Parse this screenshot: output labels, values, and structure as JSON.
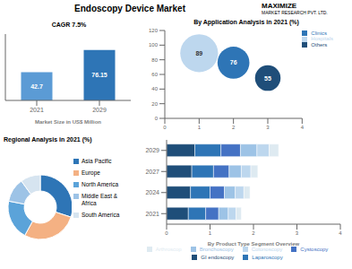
{
  "title": "Endoscopy Device Market",
  "annotations": [
    "MAXIMIZE",
    "MARKET RESEARCH PVT. LTD."
  ],
  "chart_data": [
    {
      "type": "bar",
      "categories": [
        "2021",
        "2029"
      ],
      "values": [
        42.7,
        76.15
      ],
      "colors": [
        "#5b9bd5",
        "#2e75b6"
      ],
      "x_label": "Market Size in US$ Million",
      "ylim": [
        0,
        100
      ],
      "tick_labels": "x",
      "data_labels": true,
      "grid": false,
      "annotations": [
        "CAGR 7.5%"
      ]
    },
    {
      "type": "scatter",
      "title": "By Application Analysis in 2021 (%)",
      "series": [
        {
          "name": "Hospitals",
          "color": "#bdd7ee",
          "x": [
            1
          ],
          "values": [
            89
          ],
          "sizes": [
            3500
          ]
        },
        {
          "name": "Clinics",
          "color": "#2e75b6",
          "x": [
            2
          ],
          "values": [
            76
          ],
          "sizes": [
            2500
          ]
        },
        {
          "name": "Others",
          "color": "#1f4e79",
          "x": [
            3
          ],
          "values": [
            55
          ],
          "sizes": [
            1600
          ]
        }
      ],
      "xlim": [
        0,
        4
      ],
      "xticks": [
        0,
        1,
        2,
        3,
        4
      ],
      "ylim": [
        0,
        120
      ],
      "yticks": [
        0,
        20,
        40,
        60,
        80,
        100,
        120
      ],
      "data_labels": true,
      "legend": "upper right",
      "grid": false
    },
    {
      "type": "pie",
      "title": "Regional Analysis in 2021 (%)",
      "categories": [
        "Asia Pacific",
        "Europe",
        "North America",
        "Middle East &\nAfrica",
        "South America"
      ],
      "values": [
        30,
        28,
        20,
        12,
        10
      ],
      "colors": [
        "#2e75b6",
        "#f4b183",
        "#5ba3d9",
        "#9dc3e6",
        "#d6e4f0"
      ],
      "legend": "right"
    },
    {
      "type": "bar",
      "orientation": "horizontal",
      "stacked": true,
      "x_label": "By Product Type Segment Overview",
      "categories": [
        "2021",
        "2024",
        "2027",
        "2029"
      ],
      "series": [
        {
          "name": "GI endoscopy",
          "color": "#1f4e79",
          "values": [
            0.5,
            0.55,
            0.58,
            0.65
          ]
        },
        {
          "name": "Laparoscopy",
          "color": "#2e75b6",
          "values": [
            0.4,
            0.45,
            0.5,
            0.6
          ]
        },
        {
          "name": "Cystoscopy",
          "color": "#4472c4",
          "values": [
            0.3,
            0.33,
            0.36,
            0.45
          ]
        },
        {
          "name": "Bronchoscopy",
          "color": "#9dc3e6",
          "values": [
            0.22,
            0.25,
            0.28,
            0.38
          ]
        },
        {
          "name": "Colonoscopy",
          "color": "#bdd7ee",
          "values": [
            0.18,
            0.2,
            0.22,
            0.28
          ]
        },
        {
          "name": "Arthroscop",
          "color": "#deeaf1",
          "values": [
            0.12,
            0.14,
            0.16,
            0.22
          ]
        }
      ],
      "xlim": [
        0,
        4
      ],
      "xticks": [
        0,
        1,
        2,
        3,
        4
      ],
      "legend": "bottom",
      "grid": false
    }
  ]
}
